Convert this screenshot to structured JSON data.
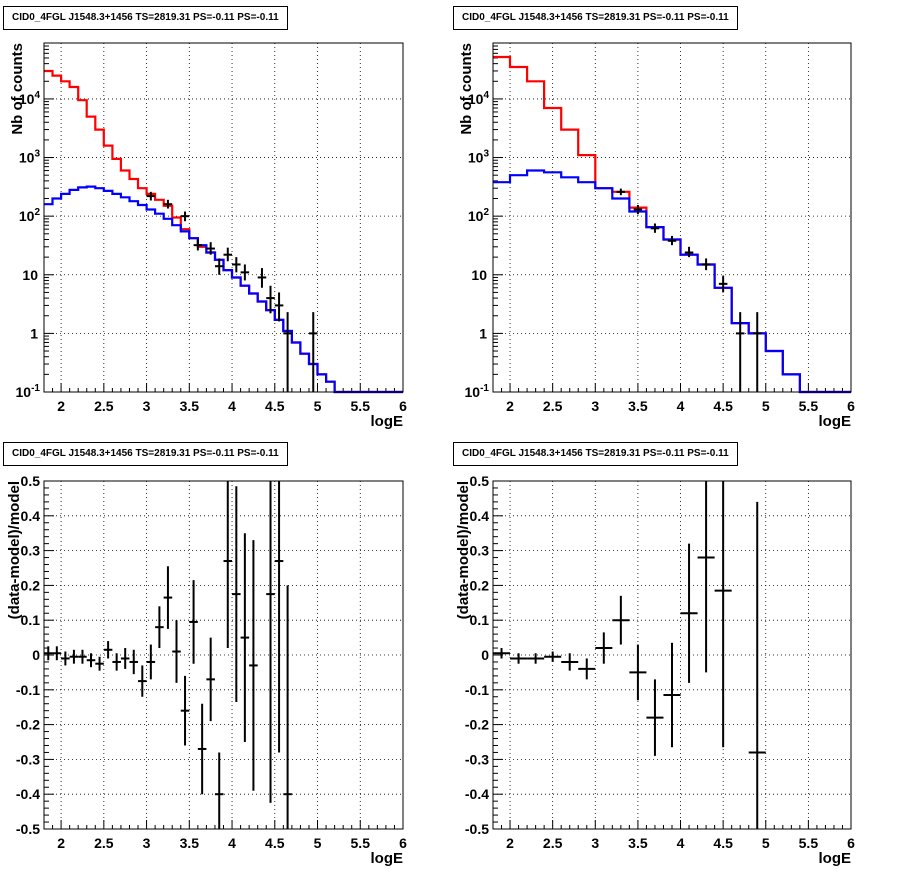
{
  "panels": [
    {
      "title": "CID0_4FGL J1548.3+1456 TS=2819.31 PS=-0.11 PS=-0.11",
      "xlabel": "logE",
      "ylabel": "Nb of counts"
    },
    {
      "title": "CID0_4FGL J1548.3+1456 TS=2819.31 PS=-0.11 PS=-0.11",
      "xlabel": "logE",
      "ylabel": "Nb of counts"
    },
    {
      "title": "CID0_4FGL J1548.3+1456 TS=2819.31 PS=-0.11 PS=-0.11",
      "xlabel": "logE",
      "ylabel": "(data-model)/model"
    },
    {
      "title": "CID0_4FGL J1548.3+1456 TS=2819.31 PS=-0.11 PS=-0.11",
      "xlabel": "logE",
      "ylabel": "(data-model)/model"
    }
  ],
  "chart_data": [
    {
      "type": "histogram",
      "title": "CID0_4FGL J1548.3+1456 TS=2819.31 PS=-0.11 PS=-0.11",
      "xlabel": "logE",
      "ylabel": "Nb of counts",
      "xlim": [
        1.8,
        6
      ],
      "ylim": [
        0.1,
        90000
      ],
      "yscale": "log",
      "x_ticks": [
        "2",
        "2.5",
        "3",
        "3.5",
        "4",
        "4.5",
        "5",
        "5.5",
        "6"
      ],
      "y_ticks": [
        "10^-1",
        "1",
        "10",
        "10^2",
        "10^3",
        "10^4"
      ],
      "grid": true,
      "bin_edges": [
        1.8,
        1.9,
        2.0,
        2.1,
        2.2,
        2.3,
        2.4,
        2.5,
        2.6,
        2.7,
        2.8,
        2.9,
        3.0,
        3.1,
        3.2,
        3.3,
        3.4,
        3.5,
        3.6,
        3.7,
        3.8,
        3.9,
        4.0,
        4.1,
        4.2,
        4.3,
        4.4,
        4.5,
        4.6,
        4.7,
        4.8,
        4.9,
        5.0,
        5.1,
        5.2,
        5.3,
        5.4,
        5.5,
        5.6,
        5.7,
        5.8,
        5.9,
        6.0
      ],
      "series": [
        {
          "color": "#ff0000",
          "values": [
            30000,
            25000,
            20000,
            16000,
            9500,
            5000,
            3000,
            1600,
            950,
            600,
            430,
            300,
            240,
            190,
            150,
            95,
            60,
            42,
            30,
            24,
            18,
            12,
            9,
            6.5,
            4.8,
            3.5,
            2.5,
            1.7,
            1.1,
            0.7,
            0.45,
            0.3,
            0.2,
            0.15,
            0.1,
            0.1,
            0.1,
            0.1,
            0.1,
            0.1,
            0.1,
            0.1
          ]
        },
        {
          "color": "#0000ff",
          "values": [
            160,
            200,
            240,
            280,
            310,
            320,
            300,
            270,
            240,
            210,
            180,
            155,
            130,
            110,
            90,
            70,
            55,
            42,
            32,
            24,
            18,
            12,
            9,
            6.5,
            4.8,
            3.5,
            2.5,
            1.7,
            1.1,
            0.7,
            0.45,
            0.3,
            0.2,
            0.15,
            0.1,
            0.1,
            0.1,
            0.1,
            0.1,
            0.1,
            0.1,
            0.1
          ]
        }
      ],
      "points": [
        {
          "x": 3.05,
          "y": 220,
          "lo": 185,
          "hi": 260
        },
        {
          "x": 3.25,
          "y": 160,
          "lo": 135,
          "hi": 190
        },
        {
          "x": 3.45,
          "y": 100,
          "lo": 82,
          "hi": 120
        },
        {
          "x": 3.6,
          "y": 32,
          "lo": 26,
          "hi": 40
        },
        {
          "x": 3.75,
          "y": 28,
          "lo": 22,
          "hi": 36
        },
        {
          "x": 3.85,
          "y": 14,
          "lo": 10,
          "hi": 19
        },
        {
          "x": 3.95,
          "y": 22,
          "lo": 17,
          "hi": 29
        },
        {
          "x": 4.05,
          "y": 15,
          "lo": 11,
          "hi": 20
        },
        {
          "x": 4.15,
          "y": 11,
          "lo": 8,
          "hi": 15
        },
        {
          "x": 4.35,
          "y": 9,
          "lo": 6,
          "hi": 13
        },
        {
          "x": 4.45,
          "y": 4,
          "lo": 2.2,
          "hi": 6.5
        },
        {
          "x": 4.55,
          "y": 3,
          "lo": 1.6,
          "hi": 5
        },
        {
          "x": 4.65,
          "y": 1,
          "lo": 0.1,
          "hi": 2.3
        },
        {
          "x": 4.95,
          "y": 1,
          "lo": 0.1,
          "hi": 2.3
        }
      ]
    },
    {
      "type": "histogram",
      "title": "CID0_4FGL J1548.3+1456 TS=2819.31 PS=-0.11 PS=-0.11",
      "xlabel": "logE",
      "ylabel": "Nb of counts",
      "xlim": [
        1.8,
        6
      ],
      "ylim": [
        0.1,
        90000
      ],
      "yscale": "log",
      "x_ticks": [
        "2",
        "2.5",
        "3",
        "3.5",
        "4",
        "4.5",
        "5",
        "5.5",
        "6"
      ],
      "y_ticks": [
        "10^-1",
        "1",
        "10",
        "10^2",
        "10^3",
        "10^4"
      ],
      "grid": true,
      "bin_edges": [
        1.8,
        2.0,
        2.2,
        2.4,
        2.6,
        2.8,
        3.0,
        3.2,
        3.4,
        3.6,
        3.8,
        4.0,
        4.2,
        4.4,
        4.6,
        4.8,
        5.0,
        5.2,
        5.4,
        5.6,
        5.8,
        6.0
      ],
      "series": [
        {
          "color": "#ff0000",
          "values": [
            52000,
            35000,
            20000,
            7000,
            3000,
            1100,
            300,
            260,
            140,
            65,
            40,
            22,
            15,
            6,
            1.5,
            1.0,
            0.5,
            0.2,
            0.1,
            0.1,
            0.1
          ]
        },
        {
          "color": "#0000ff",
          "values": [
            380,
            500,
            600,
            560,
            460,
            380,
            300,
            200,
            120,
            65,
            40,
            22,
            15,
            6,
            1.5,
            1.0,
            0.5,
            0.2,
            0.1,
            0.1,
            0.1
          ]
        }
      ],
      "points": [
        {
          "x": 3.3,
          "y": 260,
          "lo": 228,
          "hi": 295
        },
        {
          "x": 3.5,
          "y": 130,
          "lo": 108,
          "hi": 155
        },
        {
          "x": 3.7,
          "y": 62,
          "lo": 52,
          "hi": 75
        },
        {
          "x": 3.9,
          "y": 38,
          "lo": 32,
          "hi": 46
        },
        {
          "x": 4.1,
          "y": 24,
          "lo": 20,
          "hi": 30
        },
        {
          "x": 4.3,
          "y": 15,
          "lo": 12,
          "hi": 19
        },
        {
          "x": 4.5,
          "y": 7,
          "lo": 5,
          "hi": 9.5
        },
        {
          "x": 4.7,
          "y": 1,
          "lo": 0.1,
          "hi": 2.3
        },
        {
          "x": 4.9,
          "y": 1,
          "lo": 0.1,
          "hi": 2.3
        }
      ]
    },
    {
      "type": "scatter",
      "title": "CID0_4FGL J1548.3+1456 TS=2819.31 PS=-0.11 PS=-0.11",
      "xlabel": "logE",
      "ylabel": "(data-model)/model",
      "xlim": [
        1.8,
        6
      ],
      "ylim": [
        -0.5,
        0.5
      ],
      "yscale": "linear",
      "x_ticks": [
        "2",
        "2.5",
        "3",
        "3.5",
        "4",
        "4.5",
        "5",
        "5.5",
        "6"
      ],
      "y_ticks": [
        "-0.5",
        "-0.4",
        "-0.3",
        "-0.2",
        "-0.1",
        "0",
        "0.1",
        "0.2",
        "0.3",
        "0.4",
        "0.5"
      ],
      "grid": true,
      "xerr": 0.05,
      "points": [
        {
          "x": 1.85,
          "y": 0.005,
          "err": 0.02
        },
        {
          "x": 1.95,
          "y": 0.005,
          "err": 0.02
        },
        {
          "x": 2.05,
          "y": -0.01,
          "err": 0.02
        },
        {
          "x": 2.15,
          "y": -0.005,
          "err": 0.02
        },
        {
          "x": 2.25,
          "y": -0.005,
          "err": 0.02
        },
        {
          "x": 2.35,
          "y": -0.015,
          "err": 0.02
        },
        {
          "x": 2.45,
          "y": -0.025,
          "err": 0.02
        },
        {
          "x": 2.55,
          "y": 0.015,
          "err": 0.025
        },
        {
          "x": 2.65,
          "y": -0.02,
          "err": 0.025
        },
        {
          "x": 2.75,
          "y": -0.01,
          "err": 0.03
        },
        {
          "x": 2.85,
          "y": -0.02,
          "err": 0.035
        },
        {
          "x": 2.95,
          "y": -0.075,
          "err": 0.045
        },
        {
          "x": 3.05,
          "y": -0.02,
          "err": 0.05
        },
        {
          "x": 3.15,
          "y": 0.08,
          "err": 0.06
        },
        {
          "x": 3.25,
          "y": 0.165,
          "err": 0.09
        },
        {
          "x": 3.35,
          "y": 0.01,
          "err": 0.09
        },
        {
          "x": 3.45,
          "y": -0.16,
          "err": 0.1
        },
        {
          "x": 3.55,
          "y": 0.095,
          "err": 0.12
        },
        {
          "x": 3.65,
          "y": -0.27,
          "err": 0.13
        },
        {
          "x": 3.75,
          "y": -0.07,
          "err": 0.12
        },
        {
          "x": 3.85,
          "y": -0.4,
          "err": 0.12
        },
        {
          "x": 3.95,
          "y": 0.27,
          "err": 0.25
        },
        {
          "x": 4.05,
          "y": 0.175,
          "err": 0.31
        },
        {
          "x": 4.15,
          "y": 0.05,
          "err": 0.3
        },
        {
          "x": 4.25,
          "y": -0.03,
          "err": 0.36
        },
        {
          "x": 4.45,
          "y": 0.175,
          "err": 0.6
        },
        {
          "x": 4.55,
          "y": 0.27,
          "err": 0.55
        },
        {
          "x": 4.65,
          "y": -0.4,
          "err": 0.6
        }
      ]
    },
    {
      "type": "scatter",
      "title": "CID0_4FGL J1548.3+1456 TS=2819.31 PS=-0.11 PS=-0.11",
      "xlabel": "logE",
      "ylabel": "(data-model)/model",
      "xlim": [
        1.8,
        6
      ],
      "ylim": [
        -0.5,
        0.5
      ],
      "yscale": "linear",
      "x_ticks": [
        "2",
        "2.5",
        "3",
        "3.5",
        "4",
        "4.5",
        "5",
        "5.5",
        "6"
      ],
      "y_ticks": [
        "-0.5",
        "-0.4",
        "-0.3",
        "-0.2",
        "-0.1",
        "0",
        "0.1",
        "0.2",
        "0.3",
        "0.4",
        "0.5"
      ],
      "grid": true,
      "xerr": 0.1,
      "points": [
        {
          "x": 1.9,
          "y": 0.005,
          "err": 0.015
        },
        {
          "x": 2.1,
          "y": -0.01,
          "err": 0.015
        },
        {
          "x": 2.3,
          "y": -0.01,
          "err": 0.015
        },
        {
          "x": 2.5,
          "y": -0.005,
          "err": 0.015
        },
        {
          "x": 2.7,
          "y": -0.02,
          "err": 0.025
        },
        {
          "x": 2.9,
          "y": -0.04,
          "err": 0.03
        },
        {
          "x": 3.1,
          "y": 0.02,
          "err": 0.045
        },
        {
          "x": 3.3,
          "y": 0.1,
          "err": 0.07
        },
        {
          "x": 3.5,
          "y": -0.05,
          "err": 0.08
        },
        {
          "x": 3.7,
          "y": -0.18,
          "err": 0.11
        },
        {
          "x": 3.9,
          "y": -0.115,
          "err": 0.15
        },
        {
          "x": 4.1,
          "y": 0.12,
          "err": 0.2
        },
        {
          "x": 4.3,
          "y": 0.28,
          "err": 0.33
        },
        {
          "x": 4.5,
          "y": 0.185,
          "err": 0.45
        },
        {
          "x": 4.9,
          "y": -0.28,
          "err": 0.72
        }
      ]
    }
  ]
}
